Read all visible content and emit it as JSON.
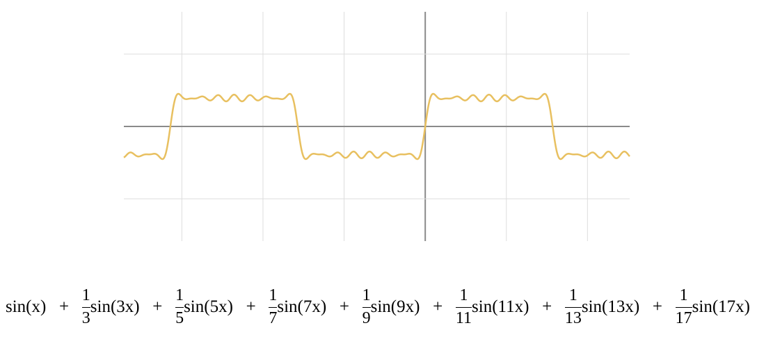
{
  "chart_data": {
    "type": "function",
    "color": "#e8c060",
    "axis_color": "#8a8a8a",
    "grid_color": "#dddddd",
    "grid": true,
    "xlim": [
      -7.43,
      5.04
    ],
    "ylim": [
      -3.17,
      3.17
    ],
    "xticks": [
      -6,
      -4,
      -2,
      0,
      2,
      4
    ],
    "yticks": [
      -2,
      0,
      2
    ],
    "formula": {
      "terms": [
        {
          "function": "sin(x)"
        },
        {
          "operator": "+",
          "numerator": 1,
          "denominator": 3,
          "function": "sin(3x)"
        },
        {
          "operator": "+",
          "numerator": 1,
          "denominator": 5,
          "function": "sin(5x)"
        },
        {
          "operator": "+",
          "numerator": 1,
          "denominator": 7,
          "function": "sin(7x)"
        },
        {
          "operator": "+",
          "numerator": 1,
          "denominator": 9,
          "function": "sin(9x)"
        },
        {
          "operator": "+",
          "numerator": 1,
          "denominator": 11,
          "function": "sin(11x)"
        },
        {
          "operator": "+",
          "numerator": 1,
          "denominator": 13,
          "function": "sin(13x)"
        },
        {
          "operator": "+",
          "numerator": 1,
          "denominator": 17,
          "function": "sin(17x)"
        }
      ]
    }
  }
}
